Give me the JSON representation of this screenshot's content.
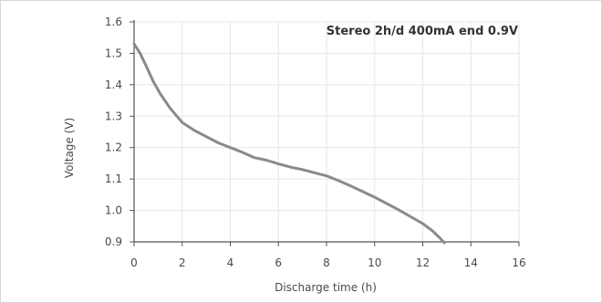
{
  "chart_data": {
    "type": "line",
    "title": "Stereo 2h/d 400mA end 0.9V",
    "xlabel": "Discharge time (h)",
    "ylabel": "Voltage (V)",
    "xlim": [
      0,
      16
    ],
    "ylim": [
      0.9,
      1.6
    ],
    "x_ticks": [
      0,
      2,
      4,
      6,
      8,
      10,
      12,
      14,
      16
    ],
    "y_ticks": [
      0.9,
      1.0,
      1.1,
      1.2,
      1.3,
      1.4,
      1.5,
      1.6
    ],
    "x_tick_labels": [
      "0",
      "2",
      "4",
      "6",
      "8",
      "10",
      "12",
      "14",
      "16"
    ],
    "y_tick_labels": [
      "0.9",
      "1.0",
      "1.1",
      "1.2",
      "1.3",
      "1.4",
      "1.5",
      "1.6"
    ],
    "grid": true,
    "series": [
      {
        "x": [
          0,
          0.25,
          0.5,
          0.8,
          1.1,
          1.5,
          2.0,
          2.5,
          3.0,
          3.5,
          4.0,
          4.5,
          5.0,
          5.5,
          6.0,
          6.5,
          7.0,
          7.5,
          8.0,
          8.5,
          9.0,
          9.5,
          10.0,
          10.5,
          11.0,
          11.5,
          12.0,
          12.4,
          12.7,
          12.9
        ],
        "y": [
          1.53,
          1.5,
          1.46,
          1.41,
          1.37,
          1.325,
          1.28,
          1.255,
          1.235,
          1.215,
          1.2,
          1.185,
          1.168,
          1.16,
          1.148,
          1.138,
          1.13,
          1.12,
          1.11,
          1.095,
          1.078,
          1.06,
          1.042,
          1.022,
          1.002,
          0.98,
          0.958,
          0.935,
          0.913,
          0.897
        ]
      }
    ],
    "colors": {
      "line": "#8a8a8a",
      "grid": "#e6e6e6",
      "axis": "#555555"
    }
  }
}
